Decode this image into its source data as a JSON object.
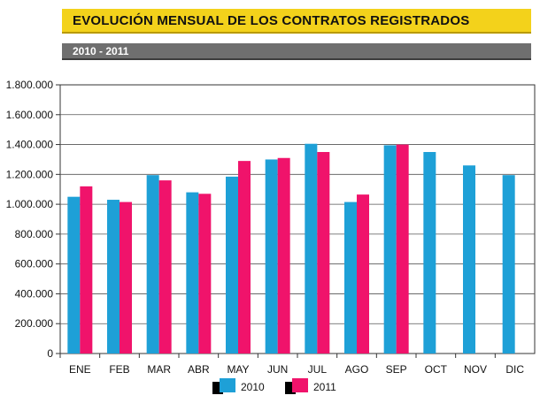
{
  "title": "EVOLUCIÓN MENSUAL DE LOS CONTRATOS REGISTRADOS",
  "subtitle": "2010 - 2011",
  "colors": {
    "title_bg": "#f3d21b",
    "subtitle_bg": "#6f6f6f"
  },
  "chart_data": {
    "type": "bar",
    "categories": [
      "ENE",
      "FEB",
      "MAR",
      "ABR",
      "MAY",
      "JUN",
      "JUL",
      "AGO",
      "SEP",
      "OCT",
      "NOV",
      "DIC"
    ],
    "series": [
      {
        "name": "2010",
        "color": "#1ea0d7",
        "values": [
          1050000,
          1030000,
          1195000,
          1080000,
          1185000,
          1300000,
          1405000,
          1015000,
          1395000,
          1350000,
          1260000,
          1195000
        ]
      },
      {
        "name": "2011",
        "color": "#f0136b",
        "values": [
          1120000,
          1015000,
          1160000,
          1070000,
          1290000,
          1310000,
          1350000,
          1065000,
          1400000,
          null,
          null,
          null
        ]
      }
    ],
    "ylim": [
      0,
      1800000
    ],
    "yticks": [
      "0",
      "200.000",
      "400.000",
      "600.000",
      "800.000",
      "1.000.000",
      "1.200.000",
      "1.400.000",
      "1.600.000",
      "1.800.000"
    ],
    "grid": true,
    "legend": "bottom"
  }
}
